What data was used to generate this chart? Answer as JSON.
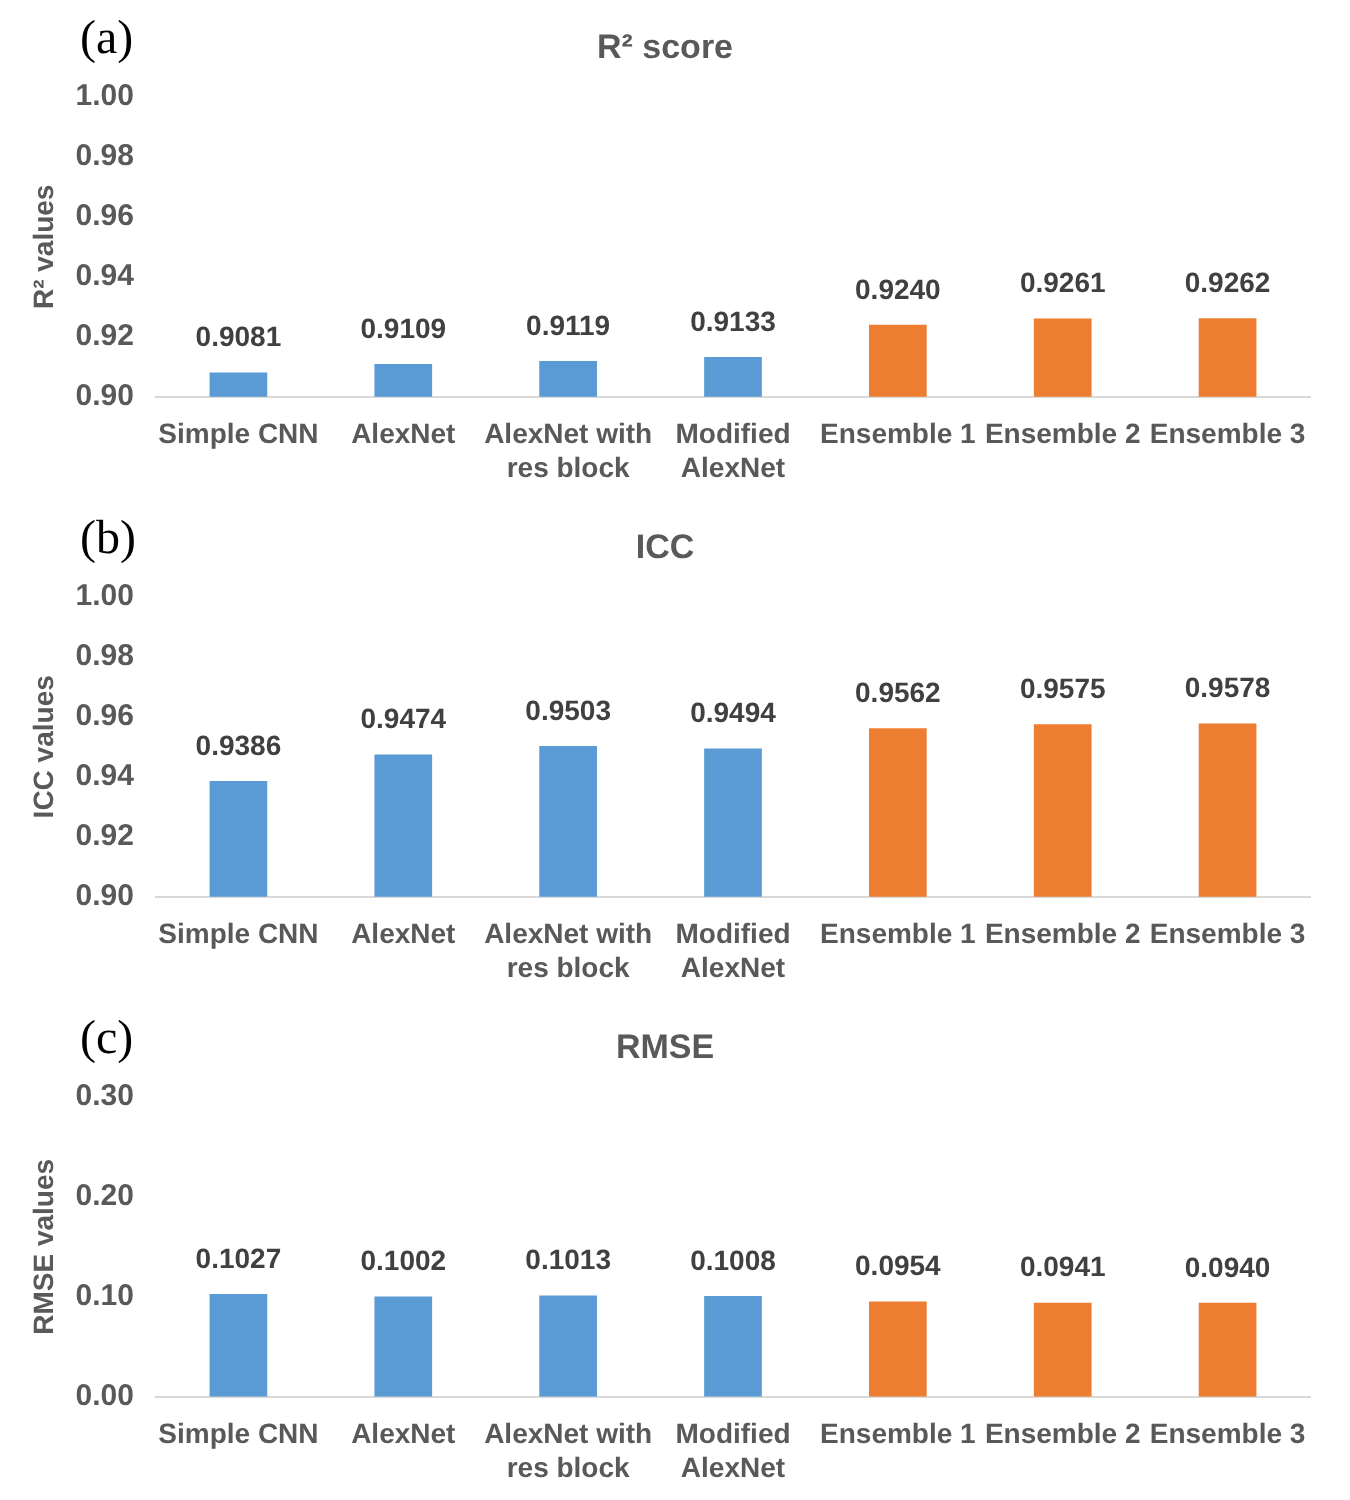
{
  "chart_data": [
    {
      "type": "bar",
      "title": "R² score",
      "ylabel": "R² values",
      "annotations": [
        "(a)"
      ],
      "categories": [
        "Simple CNN",
        "AlexNet",
        "AlexNet with res block",
        "Modified AlexNet",
        "Ensemble 1",
        "Ensemble 2",
        "Ensemble 3"
      ],
      "values": [
        0.9081,
        0.9109,
        0.9119,
        0.9133,
        0.924,
        0.9261,
        0.9262
      ],
      "value_labels": [
        "0.9081",
        "0.9109",
        "0.9119",
        "0.9133",
        "0.9240",
        "0.9261",
        "0.9262"
      ],
      "colors": [
        "#5b9bd5",
        "#5b9bd5",
        "#5b9bd5",
        "#5b9bd5",
        "#ed7d31",
        "#ed7d31",
        "#ed7d31"
      ],
      "ylim": [
        0.9,
        1.0
      ],
      "yticks": [
        {
          "value": 0.9,
          "label": "0.90"
        },
        {
          "value": 0.92,
          "label": "0.92"
        },
        {
          "value": 0.94,
          "label": "0.94"
        },
        {
          "value": 0.96,
          "label": "0.96"
        },
        {
          "value": 0.98,
          "label": "0.98"
        },
        {
          "value": 1.0,
          "label": "1.00"
        }
      ],
      "grid": false
    },
    {
      "type": "bar",
      "title": "ICC",
      "ylabel": "ICC values",
      "annotations": [
        "(b)"
      ],
      "categories": [
        "Simple CNN",
        "AlexNet",
        "AlexNet with res block",
        "Modified AlexNet",
        "Ensemble 1",
        "Ensemble 2",
        "Ensemble 3"
      ],
      "values": [
        0.9386,
        0.9474,
        0.9503,
        0.9494,
        0.9562,
        0.9575,
        0.9578
      ],
      "value_labels": [
        "0.9386",
        "0.9474",
        "0.9503",
        "0.9494",
        "0.9562",
        "0.9575",
        "0.9578"
      ],
      "colors": [
        "#5b9bd5",
        "#5b9bd5",
        "#5b9bd5",
        "#5b9bd5",
        "#ed7d31",
        "#ed7d31",
        "#ed7d31"
      ],
      "ylim": [
        0.9,
        1.0
      ],
      "yticks": [
        {
          "value": 0.9,
          "label": "0.90"
        },
        {
          "value": 0.92,
          "label": "0.92"
        },
        {
          "value": 0.94,
          "label": "0.94"
        },
        {
          "value": 0.96,
          "label": "0.96"
        },
        {
          "value": 0.98,
          "label": "0.98"
        },
        {
          "value": 1.0,
          "label": "1.00"
        }
      ],
      "grid": false
    },
    {
      "type": "bar",
      "title": "RMSE",
      "ylabel": "RMSE values",
      "annotations": [
        "(c)"
      ],
      "categories": [
        "Simple CNN",
        "AlexNet",
        "AlexNet with res block",
        "Modified AlexNet",
        "Ensemble 1",
        "Ensemble 2",
        "Ensemble 3"
      ],
      "values": [
        0.1027,
        0.1002,
        0.1013,
        0.1008,
        0.0954,
        0.0941,
        0.094
      ],
      "value_labels": [
        "0.1027",
        "0.1002",
        "0.1013",
        "0.1008",
        "0.0954",
        "0.0941",
        "0.0940"
      ],
      "colors": [
        "#5b9bd5",
        "#5b9bd5",
        "#5b9bd5",
        "#5b9bd5",
        "#ed7d31",
        "#ed7d31",
        "#ed7d31"
      ],
      "ylim": [
        0.0,
        0.3
      ],
      "yticks": [
        {
          "value": 0.0,
          "label": "0.00"
        },
        {
          "value": 0.1,
          "label": "0.10"
        },
        {
          "value": 0.2,
          "label": "0.20"
        },
        {
          "value": 0.3,
          "label": "0.30"
        }
      ],
      "grid": false
    }
  ]
}
